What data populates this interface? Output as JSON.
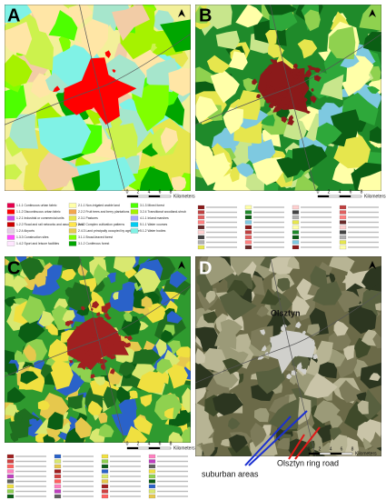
{
  "panels": [
    {
      "label": "A",
      "legend": [
        "1.1.1 Continuous urban fabric",
        "1.1.2 Discontinuous urban fabric",
        "1.2.1 Industrial or commercial units",
        "1.2.2 Road and rail networks and associated land",
        "1.2.4 Airports",
        "1.3.3 Construction sites",
        "1.4.2 Sport and leisure facilities",
        "2.1.1 Non-irrigated arable land",
        "2.2.2 Fruit trees and berry plantations",
        "2.3.1 Pastures",
        "2.4.2 Complex cultivation patterns",
        "2.4.3 Land principally occupied by agriculture",
        "3.1.1 Broad-leaved forest",
        "3.1.2 Coniferous forest",
        "3.1.3 Mixed forest",
        "3.2.4 Transitional woodland-shrub",
        "4.1.1 Inland marshes",
        "5.1.1 Water courses",
        "5.1.2 Water bodies"
      ],
      "scale": {
        "ticks": [
          "0",
          "2",
          "4",
          "6",
          "8"
        ],
        "unit": "Kilometers"
      }
    },
    {
      "label": "B",
      "scale": {
        "ticks": [
          "0",
          "2",
          "4",
          "6",
          "8"
        ],
        "unit": "Kilometers"
      }
    },
    {
      "label": "C",
      "scale": {
        "ticks": [
          "0",
          "2",
          "4",
          "6",
          "8"
        ],
        "unit": "Kilometers"
      }
    },
    {
      "label": "D",
      "place": "Olsztyn",
      "annotations": [
        "suburban areas",
        "Olsztyn ring road"
      ],
      "scale": {
        "ticks": [
          "0",
          "2",
          "4",
          "6",
          "8"
        ],
        "unit": "Kilometers"
      }
    }
  ]
}
